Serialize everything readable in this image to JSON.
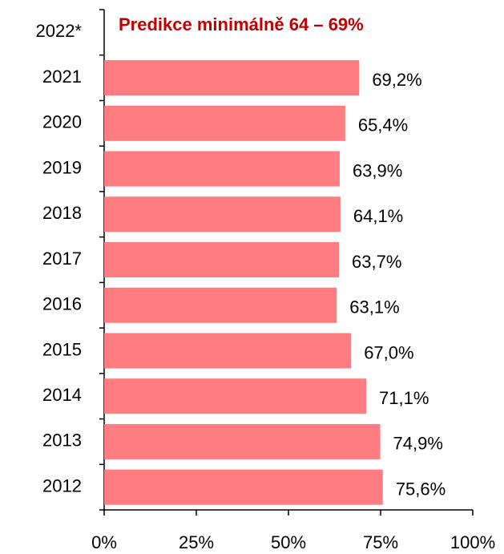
{
  "chart_data": {
    "type": "bar",
    "orientation": "horizontal",
    "annotation": "Predikce minimálně 64 – 69%",
    "categories": [
      "2022*",
      "2021",
      "2020",
      "2019",
      "2018",
      "2017",
      "2016",
      "2015",
      "2014",
      "2013",
      "2012"
    ],
    "values": [
      null,
      69.2,
      65.4,
      63.9,
      64.1,
      63.7,
      63.1,
      67.0,
      71.1,
      74.9,
      75.6
    ],
    "value_labels": [
      null,
      "69,2%",
      "65,4%",
      "63,9%",
      "64,1%",
      "63,7%",
      "63,1%",
      "67,0%",
      "71,1%",
      "74,9%",
      "75,6%"
    ],
    "color": "#ff7c80",
    "xlim": [
      0,
      100
    ],
    "xticks": [
      {
        "value": 0,
        "label": "0%"
      },
      {
        "value": 25,
        "label": "25%"
      },
      {
        "value": 50,
        "label": "50%"
      },
      {
        "value": 75,
        "label": "75%"
      },
      {
        "value": 100,
        "label": "100%"
      }
    ],
    "grid": false
  }
}
